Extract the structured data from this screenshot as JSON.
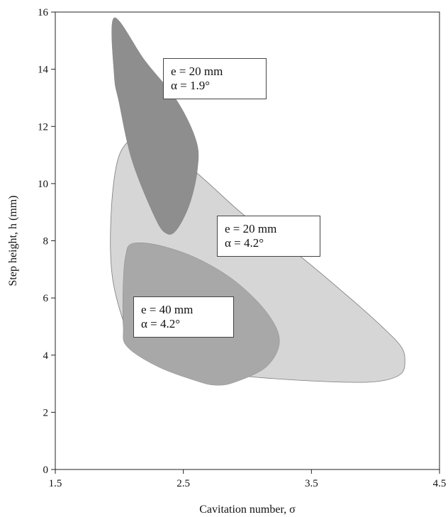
{
  "chart_data": {
    "type": "area",
    "xlabel": "Cavitation number, σ",
    "ylabel": "Step height, h (mm)",
    "xlim": [
      1.5,
      4.5
    ],
    "ylim": [
      0,
      16
    ],
    "x_ticks": [
      "1.5",
      "2.5",
      "3.5",
      "4.5"
    ],
    "y_ticks": [
      "0",
      "2",
      "4",
      "6",
      "8",
      "10",
      "12",
      "14",
      "16"
    ],
    "grid": false,
    "regions": [
      {
        "label": [
          "e = 20 mm",
          "α = 4.2°"
        ],
        "color": "#d6d6d6",
        "points": [
          [
            2.03,
            5.2
          ],
          [
            1.95,
            6.6
          ],
          [
            1.93,
            8.0
          ],
          [
            1.95,
            9.8
          ],
          [
            2.0,
            11.0
          ],
          [
            2.1,
            11.6
          ],
          [
            2.22,
            11.85
          ],
          [
            2.3,
            11.7
          ],
          [
            2.45,
            11.0
          ],
          [
            2.7,
            10.0
          ],
          [
            3.0,
            8.8
          ],
          [
            3.4,
            7.5
          ],
          [
            3.8,
            6.0
          ],
          [
            4.05,
            5.0
          ],
          [
            4.2,
            4.3
          ],
          [
            4.23,
            3.8
          ],
          [
            4.2,
            3.35
          ],
          [
            4.05,
            3.1
          ],
          [
            3.8,
            3.05
          ],
          [
            3.3,
            3.15
          ],
          [
            2.9,
            3.3
          ],
          [
            2.6,
            3.5
          ],
          [
            2.3,
            4.0
          ],
          [
            2.1,
            4.5
          ]
        ]
      },
      {
        "label": [
          "e = 40 mm",
          "α = 4.2°"
        ],
        "color": "#a8a8a8",
        "points": [
          [
            2.06,
            4.3
          ],
          [
            2.03,
            5.0
          ],
          [
            2.03,
            6.5
          ],
          [
            2.05,
            7.5
          ],
          [
            2.1,
            7.9
          ],
          [
            2.3,
            7.85
          ],
          [
            2.6,
            7.4
          ],
          [
            2.9,
            6.6
          ],
          [
            3.15,
            5.5
          ],
          [
            3.25,
            4.5
          ],
          [
            3.15,
            3.6
          ],
          [
            2.9,
            3.05
          ],
          [
            2.75,
            2.95
          ],
          [
            2.6,
            3.1
          ],
          [
            2.3,
            3.6
          ]
        ]
      },
      {
        "label": [
          "e = 20 mm",
          "α = 1.9°"
        ],
        "color": "#8e8e8e",
        "points": [
          [
            1.96,
            15.8
          ],
          [
            2.2,
            14.3
          ],
          [
            2.45,
            12.9
          ],
          [
            2.6,
            11.5
          ],
          [
            2.61,
            10.5
          ],
          [
            2.55,
            9.3
          ],
          [
            2.45,
            8.4
          ],
          [
            2.37,
            8.25
          ],
          [
            2.28,
            8.8
          ],
          [
            2.1,
            10.8
          ],
          [
            2.0,
            12.8
          ],
          [
            1.96,
            13.8
          ]
        ]
      }
    ]
  }
}
